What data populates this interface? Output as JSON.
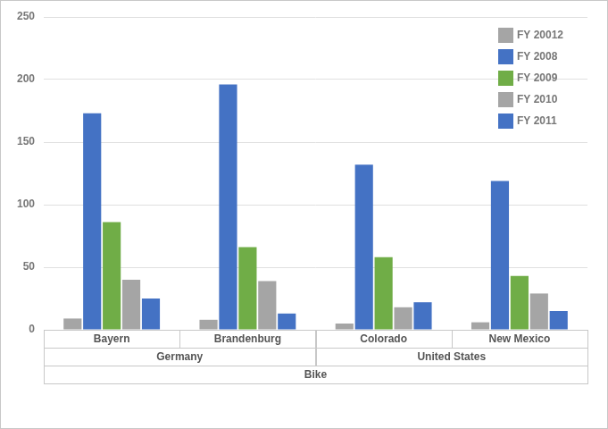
{
  "chart_data": {
    "type": "bar",
    "categories": [
      "Bayern",
      "Brandenburg",
      "Colorado",
      "New Mexico"
    ],
    "category_groups": [
      {
        "name": "Germany",
        "count": 2
      },
      {
        "name": "United States",
        "count": 2
      }
    ],
    "category_supergroup": "Bike",
    "series": [
      {
        "name": "FY 20012",
        "color": "#a5a5a5",
        "values": [
          9,
          8,
          5,
          6
        ]
      },
      {
        "name": "FY 2008",
        "color": "#4472c4",
        "values": [
          173,
          196,
          132,
          119
        ]
      },
      {
        "name": "FY 2009",
        "color": "#70ad47",
        "values": [
          86,
          66,
          58,
          43
        ]
      },
      {
        "name": "FY 2010",
        "color": "#a5a5a5",
        "values": [
          40,
          39,
          18,
          29
        ]
      },
      {
        "name": "FY 2011",
        "color": "#4472c4",
        "values": [
          25,
          13,
          22,
          15
        ]
      }
    ],
    "ylim": [
      0,
      250
    ],
    "yticks": [
      0,
      50,
      100,
      150,
      200,
      250
    ],
    "grid": true,
    "legend": "upper right"
  }
}
